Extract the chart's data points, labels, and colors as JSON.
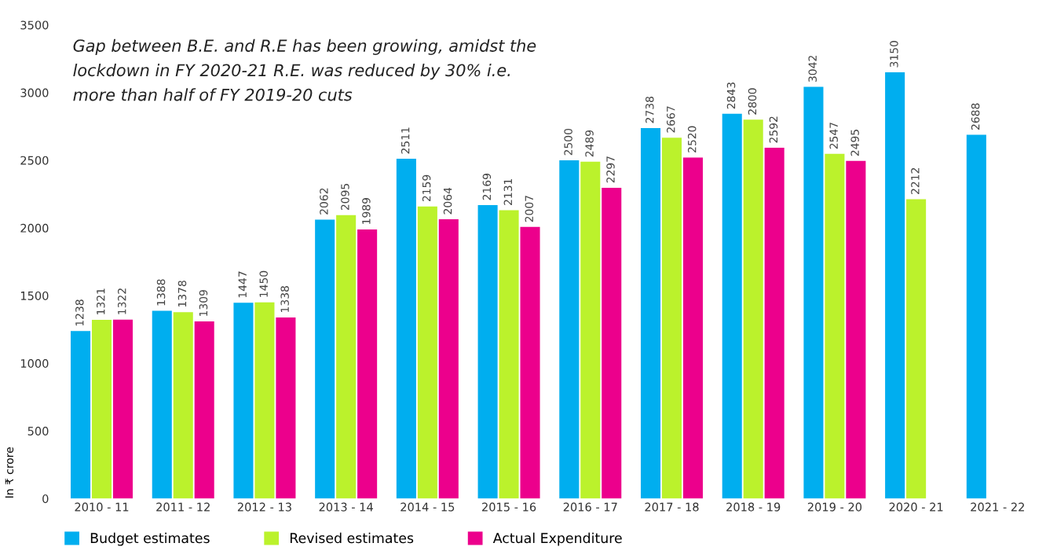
{
  "chart_data": {
    "type": "bar",
    "ylabel": "In ₹ crore",
    "annotations": [
      "Gap between B.E. and R.E has been growing, amidst the\nlockdown in FY 2020-21 R.E. was reduced by 30% i.e.\nmore than half of FY 2019-20 cuts"
    ],
    "categories": [
      "2010 - 11",
      "2011 - 12",
      "2012 - 13",
      "2013 - 14",
      "2014 - 15",
      "2015 - 16",
      "2016 - 17",
      "2017 - 18",
      "2018 - 19",
      "2019 - 20",
      "2020 - 21",
      "2021 - 22"
    ],
    "series": [
      {
        "name": "Budget estimates",
        "color": "#00aeef",
        "values": [
          1238,
          1388,
          1447,
          2062,
          2511,
          2169,
          2500,
          2738,
          2843,
          3042,
          3150,
          2688
        ]
      },
      {
        "name": "Revised estimates",
        "color": "#bbf22c",
        "values": [
          1321,
          1378,
          1450,
          2095,
          2159,
          2131,
          2489,
          2667,
          2800,
          2547,
          2212,
          null
        ]
      },
      {
        "name": "Actual Expenditure",
        "color": "#ec008c",
        "values": [
          1322,
          1309,
          1338,
          1989,
          2064,
          2007,
          2297,
          2520,
          2592,
          2495,
          null,
          null
        ]
      }
    ],
    "ylim": [
      0,
      3500
    ],
    "yticks": [
      0,
      500,
      1000,
      1500,
      2000,
      2500,
      3000,
      3500
    ],
    "data_labels": true,
    "grid": false,
    "legend": "bottom left"
  }
}
